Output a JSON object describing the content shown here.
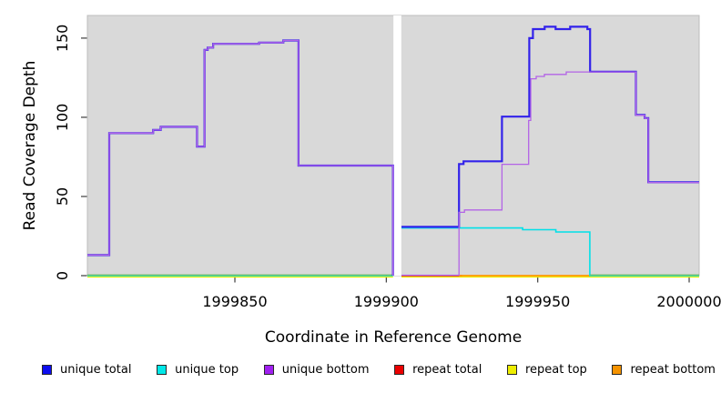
{
  "chart_data": {
    "type": "line",
    "title": "",
    "xlabel": "Coordinate in Reference Genome",
    "ylabel": "Read Coverage Depth",
    "xlim": [
      1999801.3,
      2000003.3
    ],
    "ylim": [
      0,
      164.3
    ],
    "x_ticks": [
      1999850,
      1999900,
      1999950,
      2000000
    ],
    "y_ticks": [
      0,
      50,
      100,
      150
    ],
    "grid": false,
    "panel_background": "#d9d9d9",
    "panel_border": "#bdbdbd",
    "gap_region": {
      "start": 1999902.35,
      "end": 1999904.95,
      "color": "#ffffff"
    },
    "legend_position": "bottom",
    "series": [
      {
        "name": "repeat top",
        "color": "#EDED00",
        "width": 1.5,
        "in_legend": true,
        "segments": [
          {
            "points": [
              [
                1999801.3,
                -0.8
              ]
            ],
            "end": 1999902.2
          },
          {
            "points": [
              [
                1999905,
                -0.8
              ]
            ],
            "end": 2000003.3
          }
        ]
      },
      {
        "name": "repeat total",
        "color": "#DD1122",
        "width": 1.5,
        "in_legend": true,
        "segments": [
          {
            "points": [
              [
                1999905,
                0
              ]
            ],
            "end": 1999925
          }
        ]
      },
      {
        "name": "repeat bottom",
        "color": "#FF9800",
        "width": 1.8,
        "in_legend": true,
        "segments": [
          {
            "points": [
              [
                1999924,
                0
              ]
            ],
            "end": 1999967.3
          }
        ]
      },
      {
        "name": "unique top",
        "color": "#00E0E8",
        "width": 1.6,
        "in_legend": true,
        "segments": [
          {
            "points": [
              [
                1999801.3,
                0
              ]
            ],
            "end": 1999902.2
          },
          {
            "points": [
              [
                1999905,
                30.1
              ],
              [
                1999945,
                29
              ],
              [
                1999956,
                27.6
              ],
              [
                1999967.2,
                0
              ]
            ],
            "end": 2000003.3
          }
        ]
      },
      {
        "name": "zero baseline",
        "color": "#67BE67",
        "width": 1.4,
        "in_legend": false,
        "segments": [
          {
            "points": [
              [
                1999801.3,
                0.4
              ]
            ],
            "end": 1999902.2
          },
          {
            "points": [
              [
                1999967.3,
                0.4
              ]
            ],
            "end": 2000003.3
          }
        ]
      },
      {
        "name": "unique total",
        "color": "#3222EA",
        "width": 2.2,
        "in_legend": true,
        "segments": [
          {
            "points": [
              [
                1999801.3,
                13
              ],
              [
                1999808.5,
                90
              ],
              [
                1999823,
                92
              ],
              [
                1999825.5,
                94
              ],
              [
                1999837.5,
                81.5
              ],
              [
                1999840,
                142.5
              ],
              [
                1999841,
                144
              ],
              [
                1999842.8,
                146.4
              ],
              [
                1999858,
                147.2
              ],
              [
                1999866,
                148.5
              ],
              [
                1999871,
                69.5
              ],
              [
                1999902.2,
                0
              ]
            ],
            "end": 1999902.2
          },
          {
            "points": [
              [
                1999905,
                30.8
              ],
              [
                1999924,
                70.5
              ],
              [
                1999925.5,
                72.2
              ],
              [
                1999938.2,
                100.4
              ],
              [
                1999947.2,
                150
              ],
              [
                1999948.4,
                155.7
              ],
              [
                1999952.3,
                157.2
              ],
              [
                1999955.9,
                155.7
              ],
              [
                1999960.7,
                157.2
              ],
              [
                1999966.4,
                155.7
              ],
              [
                1999967.3,
                128.8
              ],
              [
                1999982.4,
                101.5
              ],
              [
                1999985.3,
                99.5
              ],
              [
                1999986.5,
                59
              ],
              [
                2000003.3,
                59
              ]
            ],
            "end": 2000003.3
          }
        ]
      },
      {
        "name": "unique bottom",
        "color": "#B363E6",
        "width": 1.3,
        "in_legend": true,
        "segments": [
          {
            "points": [
              [
                1999801.3,
                13
              ],
              [
                1999808.5,
                90
              ],
              [
                1999823,
                92
              ],
              [
                1999825.5,
                94
              ],
              [
                1999837.5,
                81.5
              ],
              [
                1999840,
                142.5
              ],
              [
                1999841,
                144
              ],
              [
                1999842.8,
                146.4
              ],
              [
                1999858,
                147.2
              ],
              [
                1999866,
                148.5
              ],
              [
                1999871,
                69.5
              ],
              [
                1999902.2,
                0
              ]
            ],
            "end": 1999902.2
          },
          {
            "points": [
              [
                1999905,
                0.3
              ],
              [
                1999924,
                40
              ],
              [
                1999925.8,
                41.5
              ],
              [
                1999938.2,
                70.3
              ],
              [
                1999947,
                98
              ],
              [
                1999947.7,
                124.3
              ],
              [
                1999949.5,
                125.8
              ],
              [
                1999952.2,
                127.1
              ],
              [
                1999959.4,
                128.6
              ],
              [
                1999967.3,
                128.6
              ],
              [
                1999982.4,
                101.3
              ],
              [
                1999985.3,
                99.3
              ],
              [
                1999986.5,
                58.8
              ],
              [
                2000003.3,
                58.8
              ]
            ],
            "end": 2000003.3
          }
        ]
      }
    ]
  },
  "legend": {
    "items": [
      {
        "label": "unique total",
        "color": "#0D0DEF"
      },
      {
        "label": "unique top",
        "color": "#00E8E8"
      },
      {
        "label": "unique bottom",
        "color": "#A020F0"
      },
      {
        "label": "repeat total",
        "color": "#EA0000"
      },
      {
        "label": "repeat top",
        "color": "#EDED00"
      },
      {
        "label": "repeat bottom",
        "color": "#F59300"
      }
    ]
  }
}
